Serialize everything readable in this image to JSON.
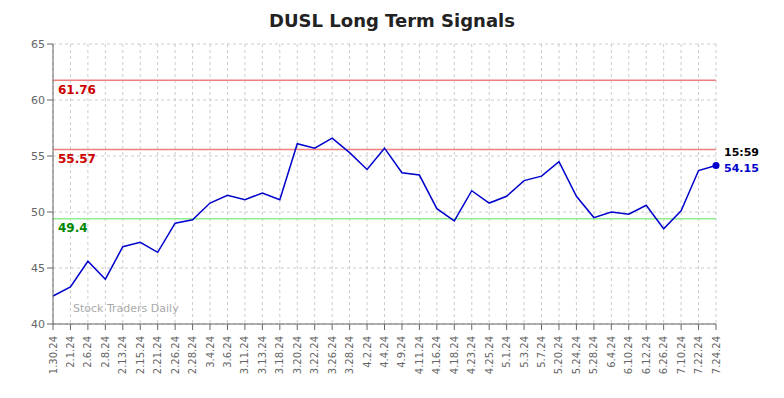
{
  "chart_data": {
    "type": "line",
    "title": "DUSL Long Term Signals",
    "color": "#0000cc",
    "grid": true,
    "ylim": [
      40,
      65
    ],
    "yticks": [
      40,
      45,
      50,
      55,
      60,
      65
    ],
    "categories": [
      "1.30.24",
      "2.1.24",
      "2.6.24",
      "2.8.24",
      "2.13.24",
      "2.15.24",
      "2.21.24",
      "2.26.24",
      "2.28.24",
      "3.4.24",
      "3.6.24",
      "3.11.24",
      "3.13.24",
      "3.18.24",
      "3.20.24",
      "3.22.24",
      "3.26.24",
      "3.28.24",
      "4.2.24",
      "4.4.24",
      "4.9.24",
      "4.11.24",
      "4.16.24",
      "4.18.24",
      "4.23.24",
      "4.25.24",
      "5.1.24",
      "5.3.24",
      "5.7.24",
      "5.20.24",
      "5.24.24",
      "5.28.24",
      "6.4.24",
      "6.10.24",
      "6.12.24",
      "6.26.24",
      "7.10.24",
      "7.22.24",
      "7.24.24"
    ],
    "values": [
      42.5,
      43.3,
      45.6,
      44.0,
      46.9,
      47.3,
      46.4,
      49.0,
      49.3,
      50.8,
      51.5,
      51.1,
      51.7,
      51.1,
      56.1,
      55.7,
      56.6,
      55.3,
      53.8,
      55.7,
      53.5,
      53.3,
      50.3,
      49.2,
      51.9,
      50.8,
      51.4,
      52.8,
      53.2,
      54.5,
      51.4,
      49.5,
      50.0,
      49.8,
      50.6,
      48.5,
      50.1,
      53.7,
      54.15
    ],
    "reference_lines": [
      {
        "value": 61.76,
        "label": "61.76",
        "color": "#f08080",
        "label_color": "#cc0000"
      },
      {
        "value": 55.57,
        "label": "55.57",
        "color": "#f08080",
        "label_color": "#cc0000"
      },
      {
        "value": 49.4,
        "label": "49.4",
        "color": "#90ee90",
        "label_color": "#008800"
      }
    ],
    "annotations": [
      {
        "text": "15:59",
        "color": "#000000"
      },
      {
        "text": "54.15",
        "color": "#0000cc"
      }
    ],
    "watermark": {
      "text": "Stock Traders Daily",
      "color": "#aaaaaa"
    }
  }
}
